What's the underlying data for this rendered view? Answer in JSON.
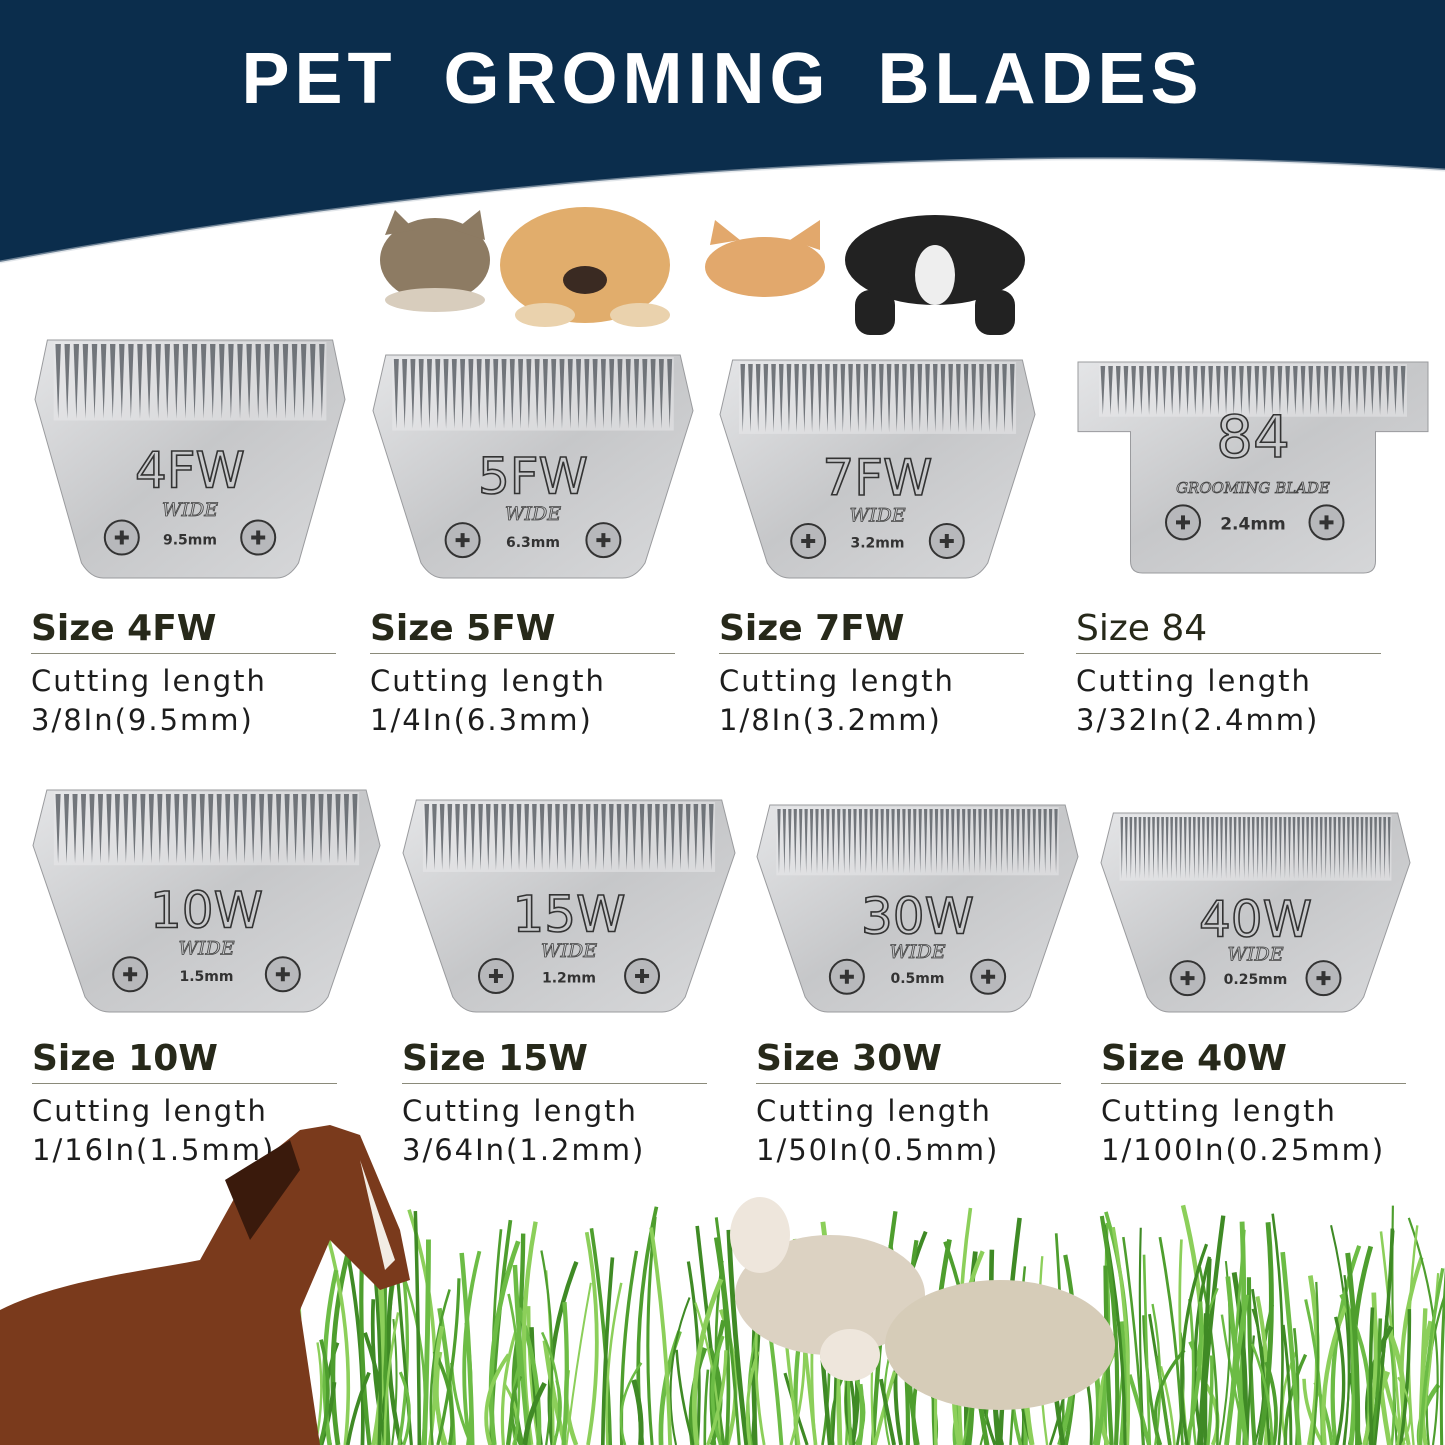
{
  "header": {
    "title": "PET  GROMING  BLADES",
    "background": "#0b2d4c"
  },
  "blades": [
    {
      "size_label": "Size 4FW",
      "cutting_label": "Cutting length",
      "cutting_value": "3/8In(9.5mm)",
      "engraving": "4FW",
      "sub": "WIDE",
      "mm": "9.5mm"
    },
    {
      "size_label": "Size 5FW",
      "cutting_label": "Cutting length",
      "cutting_value": "1/4In(6.3mm)",
      "engraving": "5FW",
      "sub": "WIDE",
      "mm": "6.3mm"
    },
    {
      "size_label": "Size 7FW",
      "cutting_label": "Cutting length",
      "cutting_value": "1/8In(3.2mm)",
      "engraving": "7FW",
      "sub": "WIDE",
      "mm": "3.2mm"
    },
    {
      "size_label": "Size 84",
      "cutting_label": "Cutting length",
      "cutting_value": "3/32In(2.4mm)",
      "engraving": "84",
      "sub": "GROOMING BLADE",
      "mm": "2.4mm"
    },
    {
      "size_label": "Size 10W",
      "cutting_label": "Cutting length",
      "cutting_value": "1/16In(1.5mm)",
      "engraving": "10W",
      "sub": "WIDE",
      "mm": "1.5mm"
    },
    {
      "size_label": "Size 15W",
      "cutting_label": "Cutting length",
      "cutting_value": "3/64In(1.2mm)",
      "engraving": "15W",
      "sub": "WIDE",
      "mm": "1.2mm"
    },
    {
      "size_label": "Size 30W",
      "cutting_label": "Cutting length",
      "cutting_value": "1/50In(0.5mm)",
      "engraving": "30W",
      "sub": "WIDE",
      "mm": "0.5mm"
    },
    {
      "size_label": "Size 40W",
      "cutting_label": "Cutting length",
      "cutting_value": "1/100In(0.25mm)",
      "engraving": "40W",
      "sub": "WIDE",
      "mm": "0.25mm"
    }
  ],
  "colors": {
    "blade": "#c9cacc",
    "label": "#27291a",
    "grass": "#5aa838"
  }
}
